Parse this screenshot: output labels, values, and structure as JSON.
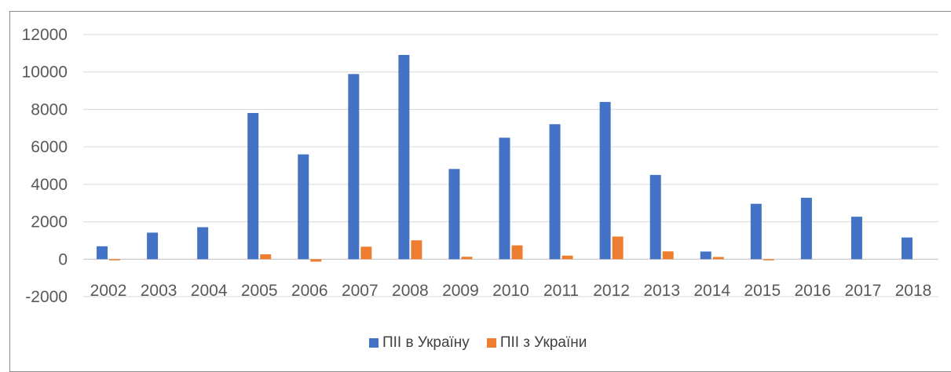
{
  "chart_data": {
    "type": "bar",
    "title": "",
    "xlabel": "",
    "ylabel": "",
    "categories": [
      "2002",
      "2003",
      "2004",
      "2005",
      "2006",
      "2007",
      "2008",
      "2009",
      "2010",
      "2011",
      "2012",
      "2013",
      "2014",
      "2015",
      "2016",
      "2017",
      "2018"
    ],
    "series": [
      {
        "name": "ПІІ в Україну",
        "color": "#4472C4",
        "values": [
          690,
          1420,
          1710,
          7810,
          5600,
          9890,
          10910,
          4820,
          6490,
          7210,
          8400,
          4500,
          410,
          2960,
          3280,
          2270,
          1160
        ]
      },
      {
        "name": "ПІІ з України",
        "color": "#ED7D31",
        "values": [
          -60,
          0,
          0,
          260,
          -130,
          670,
          1010,
          130,
          740,
          190,
          1210,
          420,
          120,
          -60,
          0,
          0,
          0
        ]
      }
    ],
    "ylim": [
      -2000,
      12000
    ],
    "yticks": [
      -2000,
      0,
      2000,
      4000,
      6000,
      8000,
      10000,
      12000
    ],
    "grid": true,
    "legend": "bottom"
  }
}
